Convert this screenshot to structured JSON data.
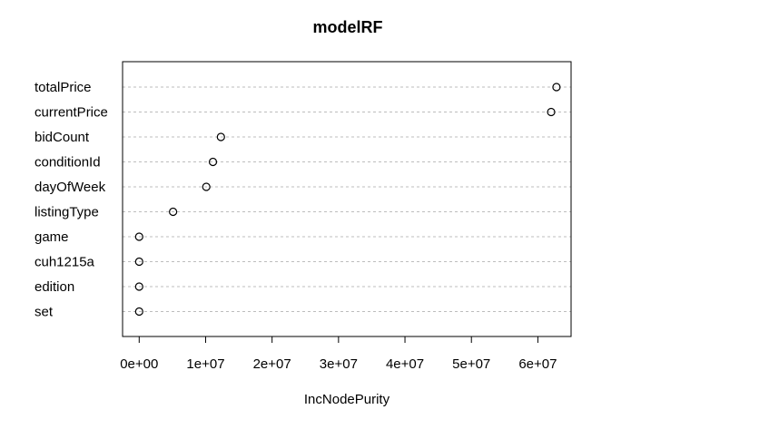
{
  "chart_data": {
    "type": "scatter",
    "title": "modelRF",
    "xlabel": "IncNodePurity",
    "ylabel": "",
    "xlim": [
      -2500000,
      65000000
    ],
    "x_ticks": [
      0,
      10000000,
      20000000,
      30000000,
      40000000,
      50000000,
      60000000
    ],
    "x_tick_labels": [
      "0e+00",
      "1e+07",
      "2e+07",
      "3e+07",
      "4e+07",
      "5e+07",
      "6e+07"
    ],
    "grid": true,
    "categories": [
      "totalPrice",
      "currentPrice",
      "bidCount",
      "conditionId",
      "dayOfWeek",
      "listingType",
      "game",
      "cuh1215a",
      "edition",
      "set"
    ],
    "values": [
      62800000,
      62000000,
      12300000,
      11100000,
      10100000,
      5100000,
      0,
      0,
      0,
      0
    ]
  }
}
